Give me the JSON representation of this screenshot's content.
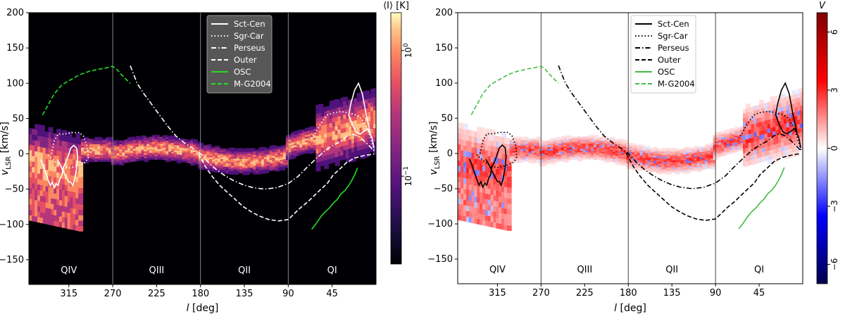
{
  "chart_data": [
    {
      "type": "heatmap",
      "panel": "left",
      "title": "",
      "xlabel": "l [deg]",
      "ylabel": "v_LSR [km/s]",
      "xlim": [
        356,
        0
      ],
      "ylim": [
        -185,
        200
      ],
      "xticks": [
        315,
        270,
        225,
        180,
        135,
        90,
        45
      ],
      "yticks": [
        200,
        150,
        100,
        50,
        0,
        -50,
        -100,
        -150
      ],
      "quadrant_dividers": [
        270,
        180,
        90
      ],
      "quadrant_labels": [
        {
          "label": "QIV",
          "l": 315
        },
        {
          "label": "QIII",
          "l": 225
        },
        {
          "label": "QII",
          "l": 135
        },
        {
          "label": "QI",
          "l": 45
        }
      ],
      "colorbar": {
        "label": "⟨I⟩ [K]",
        "scale": "log",
        "range": [
          0.02,
          2
        ],
        "ticks": [
          {
            "text": "10",
            "exp": "0",
            "value": 1
          },
          {
            "text": "10",
            "exp": "−1",
            "value": 0.1
          }
        ],
        "colormap": "magma"
      },
      "legend": {
        "position": "top-right",
        "entries": [
          "Sct-Cen",
          "Sgr-Car",
          "Perseus",
          "Outer",
          "OSC",
          "M-G2004"
        ]
      }
    },
    {
      "type": "heatmap",
      "panel": "right",
      "title": "",
      "xlabel": "l [deg]",
      "ylabel": "v_LSR [km/s]",
      "xlim": [
        356,
        0
      ],
      "ylim": [
        -185,
        200
      ],
      "xticks": [
        315,
        270,
        225,
        180,
        135,
        90,
        45
      ],
      "yticks": [
        200,
        150,
        100,
        50,
        0,
        -50,
        -100,
        -150
      ],
      "quadrant_dividers": [
        270,
        180,
        90
      ],
      "quadrant_labels": [
        {
          "label": "QIV",
          "l": 315
        },
        {
          "label": "QIII",
          "l": 225
        },
        {
          "label": "QII",
          "l": 135
        },
        {
          "label": "QI",
          "l": 45
        }
      ],
      "colorbar": {
        "label": "V",
        "scale": "linear",
        "range": [
          -7,
          7
        ],
        "ticks": [
          {
            "text": "6",
            "value": 6
          },
          {
            "text": "3",
            "value": 3
          },
          {
            "text": "0",
            "value": 0
          },
          {
            "text": "−3",
            "value": -3
          },
          {
            "text": "−6",
            "value": -6
          }
        ],
        "colormap": "seismic"
      },
      "legend": {
        "position": "top-center",
        "entries": [
          "Sct-Cen",
          "Sgr-Car",
          "Perseus",
          "Outer",
          "OSC",
          "M-G2004"
        ]
      }
    }
  ],
  "arms": {
    "Sct-Cen": {
      "style": "solid",
      "segments": [
        [
          [
            327,
            -8
          ],
          [
            324,
            -15
          ],
          [
            321,
            -24
          ],
          [
            318,
            -32
          ],
          [
            315,
            -40
          ],
          [
            313,
            -40
          ],
          [
            311,
            -45
          ],
          [
            309,
            -35
          ],
          [
            307,
            -20
          ],
          [
            306,
            -5
          ],
          [
            307,
            8
          ],
          [
            310,
            12
          ],
          [
            313,
            8
          ],
          [
            315,
            0
          ],
          [
            317,
            -8
          ],
          [
            319,
            -15
          ],
          [
            321,
            -20
          ],
          [
            322,
            -30
          ],
          [
            324,
            -35
          ],
          [
            326,
            -45
          ],
          [
            328,
            -42
          ],
          [
            330,
            -48
          ],
          [
            332,
            -40
          ],
          [
            334,
            -45
          ],
          [
            336,
            -38
          ],
          [
            338,
            -30
          ],
          [
            340,
            -22
          ],
          [
            342,
            -14
          ],
          [
            344,
            -8
          ]
        ],
        [
          [
            6,
            30
          ],
          [
            10,
            55
          ],
          [
            14,
            85
          ],
          [
            18,
            100
          ],
          [
            22,
            90
          ],
          [
            26,
            70
          ],
          [
            28,
            55
          ],
          [
            24,
            40
          ],
          [
            20,
            30
          ],
          [
            16,
            28
          ],
          [
            12,
            32
          ],
          [
            8,
            35
          ],
          [
            4,
            22
          ],
          [
            2,
            8
          ]
        ]
      ]
    },
    "Sgr-Car": {
      "style": "dotted",
      "segments": [
        [
          [
            333,
            0
          ],
          [
            330,
            18
          ],
          [
            326,
            28
          ],
          [
            320,
            28
          ],
          [
            312,
            30
          ],
          [
            304,
            30
          ],
          [
            300,
            25
          ],
          [
            296,
            10
          ],
          [
            295,
            -5
          ],
          [
            298,
            -12
          ],
          [
            302,
            -15
          ],
          [
            308,
            -18
          ],
          [
            315,
            -20
          ],
          [
            322,
            -18
          ],
          [
            328,
            -12
          ],
          [
            334,
            -5
          ],
          [
            338,
            0
          ]
        ],
        [
          [
            2,
            5
          ],
          [
            6,
            25
          ],
          [
            10,
            38
          ],
          [
            15,
            50
          ],
          [
            20,
            55
          ],
          [
            28,
            58
          ],
          [
            36,
            60
          ],
          [
            44,
            58
          ],
          [
            50,
            55
          ],
          [
            54,
            48
          ],
          [
            58,
            40
          ],
          [
            62,
            30
          ],
          [
            66,
            22
          ]
        ]
      ]
    },
    "Perseus": {
      "style": "dashdot",
      "segments": [
        [
          [
            252,
            125
          ],
          [
            245,
            100
          ],
          [
            238,
            85
          ],
          [
            230,
            70
          ],
          [
            222,
            55
          ],
          [
            214,
            40
          ],
          [
            205,
            25
          ],
          [
            196,
            15
          ],
          [
            186,
            6
          ],
          [
            180,
            0
          ],
          [
            172,
            -12
          ],
          [
            164,
            -22
          ],
          [
            156,
            -30
          ],
          [
            146,
            -38
          ],
          [
            136,
            -44
          ],
          [
            126,
            -48
          ],
          [
            114,
            -50
          ],
          [
            102,
            -48
          ],
          [
            90,
            -42
          ],
          [
            80,
            -32
          ],
          [
            70,
            -18
          ],
          [
            60,
            -5
          ],
          [
            52,
            5
          ],
          [
            44,
            12
          ],
          [
            36,
            18
          ],
          [
            30,
            25
          ],
          [
            24,
            28
          ],
          [
            18,
            25
          ],
          [
            12,
            18
          ],
          [
            6,
            10
          ],
          [
            2,
            4
          ]
        ]
      ]
    },
    "Outer": {
      "style": "dashed",
      "segments": [
        [
          [
            182,
            0
          ],
          [
            175,
            -18
          ],
          [
            168,
            -32
          ],
          [
            160,
            -45
          ],
          [
            152,
            -55
          ],
          [
            144,
            -65
          ],
          [
            136,
            -75
          ],
          [
            128,
            -82
          ],
          [
            120,
            -88
          ],
          [
            110,
            -93
          ],
          [
            100,
            -95
          ],
          [
            90,
            -93
          ],
          [
            84,
            -85
          ],
          [
            78,
            -77
          ],
          [
            70,
            -68
          ],
          [
            64,
            -60
          ],
          [
            58,
            -52
          ],
          [
            50,
            -42
          ],
          [
            44,
            -30
          ],
          [
            36,
            -20
          ],
          [
            30,
            -12
          ],
          [
            22,
            -6
          ],
          [
            14,
            -3
          ],
          [
            6,
            -1
          ],
          [
            2,
            0
          ]
        ]
      ]
    },
    "OSC": {
      "style": "solid-green",
      "segments": [
        [
          [
            66,
            -107
          ],
          [
            62,
            -100
          ],
          [
            58,
            -92
          ],
          [
            56,
            -88
          ],
          [
            52,
            -82
          ],
          [
            48,
            -77
          ],
          [
            44,
            -70
          ],
          [
            40,
            -65
          ],
          [
            36,
            -57
          ],
          [
            32,
            -52
          ],
          [
            28,
            -45
          ],
          [
            25,
            -38
          ],
          [
            22,
            -30
          ],
          [
            19,
            -20
          ]
        ]
      ]
    },
    "M-G2004": {
      "style": "dashed-green",
      "segments": [
        [
          [
            342,
            55
          ],
          [
            336,
            70
          ],
          [
            330,
            85
          ],
          [
            322,
            98
          ],
          [
            313,
            105
          ],
          [
            304,
            112
          ],
          [
            294,
            117
          ],
          [
            284,
            120
          ],
          [
            276,
            122
          ],
          [
            270,
            124
          ],
          [
            266,
            120
          ],
          [
            261,
            112
          ],
          [
            256,
            105
          ],
          [
            252,
            100
          ]
        ]
      ]
    }
  }
}
